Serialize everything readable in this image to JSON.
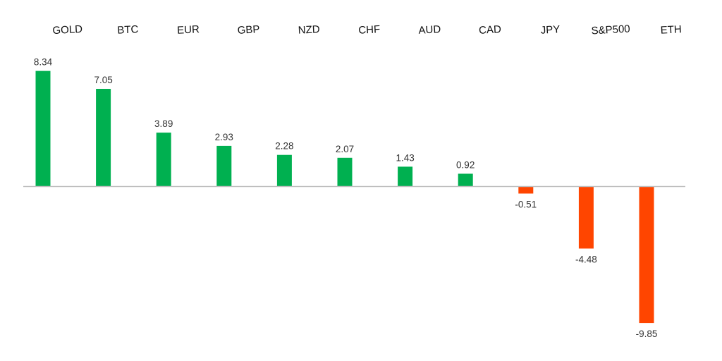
{
  "chart_data": {
    "type": "bar",
    "title": "",
    "xlabel": "",
    "ylabel": "",
    "categories": [
      "GOLD",
      "BTC",
      "EUR",
      "GBP",
      "NZD",
      "CHF",
      "AUD",
      "CAD",
      "JPY",
      "S&P500",
      "ETH"
    ],
    "values": [
      8.34,
      7.05,
      3.89,
      2.93,
      2.28,
      2.07,
      1.43,
      0.92,
      -0.51,
      -4.48,
      -9.85
    ],
    "value_labels": [
      "8.34",
      "7.05",
      "3.89",
      "2.93",
      "2.28",
      "2.07",
      "1.43",
      "0.92",
      "-0.51",
      "-4.48",
      "-9.85"
    ],
    "ylim": [
      -9.85,
      8.34
    ],
    "grid": false,
    "legend": "none",
    "category_labels_position": "top",
    "colors": {
      "positive": "#00b050",
      "negative": "#ff4500",
      "axis": "#bfbfbf"
    }
  }
}
